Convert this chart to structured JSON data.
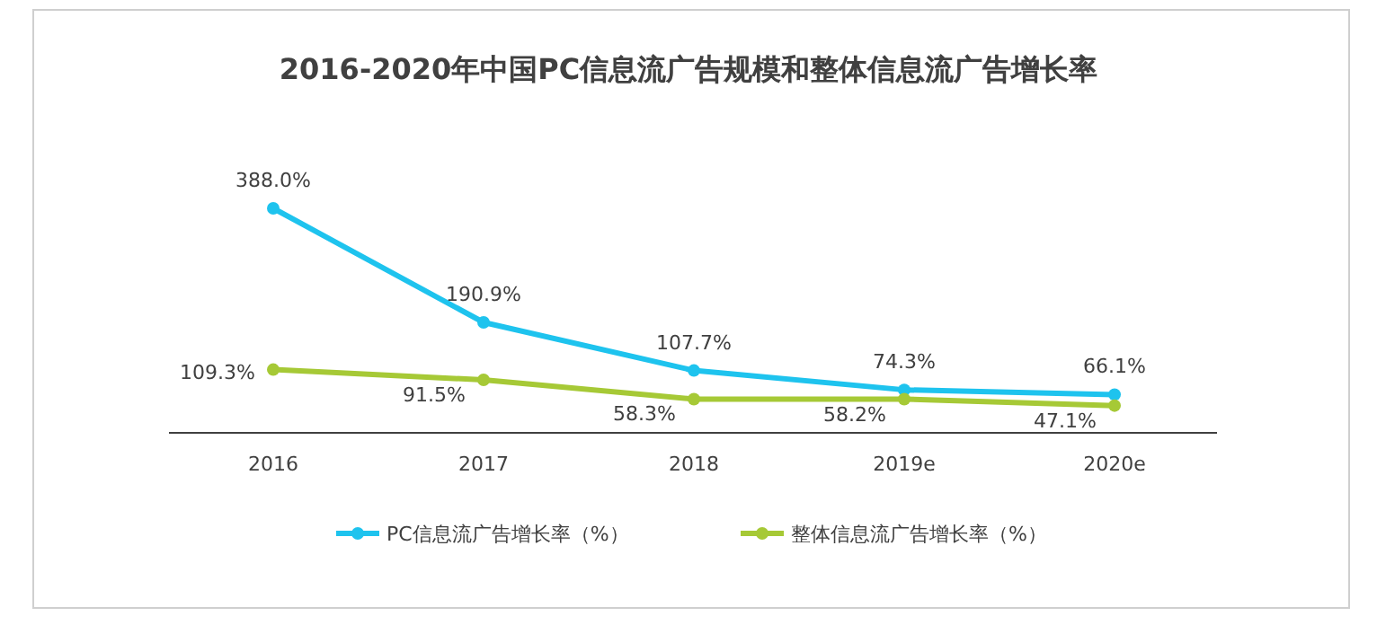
{
  "chart_data": {
    "type": "line",
    "title": "2016-2020年中国PC信息流广告规模和整体信息流广告增长率",
    "categories": [
      "2016",
      "2017",
      "2018",
      "2019e",
      "2020e"
    ],
    "series": [
      {
        "name": "PC信息流广告增长率（%）",
        "color": "#1ec3ee",
        "values": [
          388.0,
          190.9,
          107.7,
          74.3,
          66.1
        ],
        "value_labels": [
          "388.0%",
          "190.9%",
          "107.7%",
          "74.3%",
          "66.1%"
        ]
      },
      {
        "name": "整体信息流广告增长率（%）",
        "color": "#a6c936",
        "values": [
          109.3,
          91.5,
          58.3,
          58.2,
          47.1
        ],
        "value_labels": [
          "109.3%",
          "91.5%",
          "58.3%",
          "58.2%",
          "47.1%"
        ]
      }
    ],
    "legend": "bottom",
    "marker": "circle",
    "line_style": "solid",
    "tick_labels": "x"
  }
}
